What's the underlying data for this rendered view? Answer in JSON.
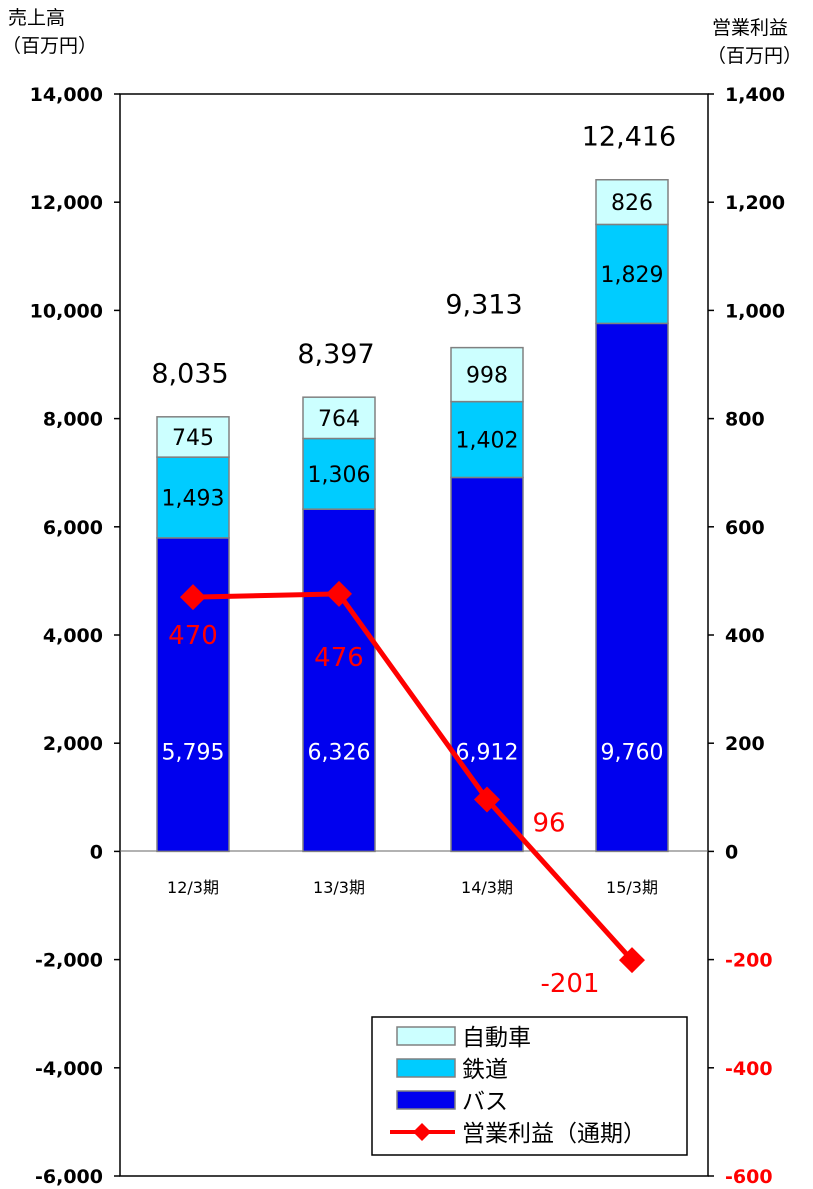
{
  "chart_data": {
    "type": "bar",
    "stacked": true,
    "categories": [
      "12/3期",
      "13/3期",
      "14/3期",
      "15/3期"
    ],
    "series": [
      {
        "name": "バス",
        "axis": "left",
        "color": "#0000ee",
        "values": [
          5795,
          6326,
          6912,
          9760
        ],
        "labels": [
          "5,795",
          "6,326",
          "6,912",
          "9,760"
        ]
      },
      {
        "name": "鉄道",
        "axis": "left",
        "color": "#00ccff",
        "values": [
          1493,
          1306,
          1402,
          1829
        ],
        "labels": [
          "1,493",
          "1,306",
          "1,402",
          "1,829"
        ]
      },
      {
        "name": "自動車",
        "axis": "left",
        "color": "#ccffff",
        "values": [
          745,
          764,
          998,
          826
        ],
        "labels": [
          "745",
          "764",
          "998",
          "826"
        ]
      },
      {
        "name": "営業利益（通期）",
        "type": "line",
        "axis": "right",
        "color": "#ff0000",
        "values": [
          470,
          476,
          96,
          -201
        ],
        "labels": [
          "470",
          "476",
          "96",
          "-201"
        ]
      }
    ],
    "totals": [
      8035,
      8397,
      9313,
      12416
    ],
    "total_labels": [
      "8,035",
      "8,397",
      "9,313",
      "12,416"
    ],
    "left_axis": {
      "title_line1": "売上高",
      "title_line2": "（百万円）",
      "ylim": [
        -6000,
        14000
      ],
      "ticks": [
        14000,
        12000,
        10000,
        8000,
        6000,
        4000,
        2000,
        0,
        -2000,
        -4000,
        -6000
      ],
      "tick_labels": [
        "14,000",
        "12,000",
        "10,000",
        "8,000",
        "6,000",
        "4,000",
        "2,000",
        "0",
        "-2,000",
        "-4,000",
        "-6,000"
      ]
    },
    "right_axis": {
      "title_line1": "営業利益",
      "title_line2": "（百万円）",
      "ylim": [
        -600,
        1400
      ],
      "ticks": [
        1400,
        1200,
        1000,
        800,
        600,
        400,
        200,
        0,
        -200,
        -400,
        -600
      ],
      "tick_labels": [
        "1,400",
        "1,200",
        "1,000",
        "800",
        "600",
        "400",
        "200",
        "0",
        "-200",
        "-400",
        "-600"
      ],
      "negative_color": "#ff0000"
    },
    "legend": {
      "placement": "bottom-right",
      "entries": [
        "自動車",
        "鉄道",
        "バス",
        "営業利益（通期）"
      ]
    }
  }
}
